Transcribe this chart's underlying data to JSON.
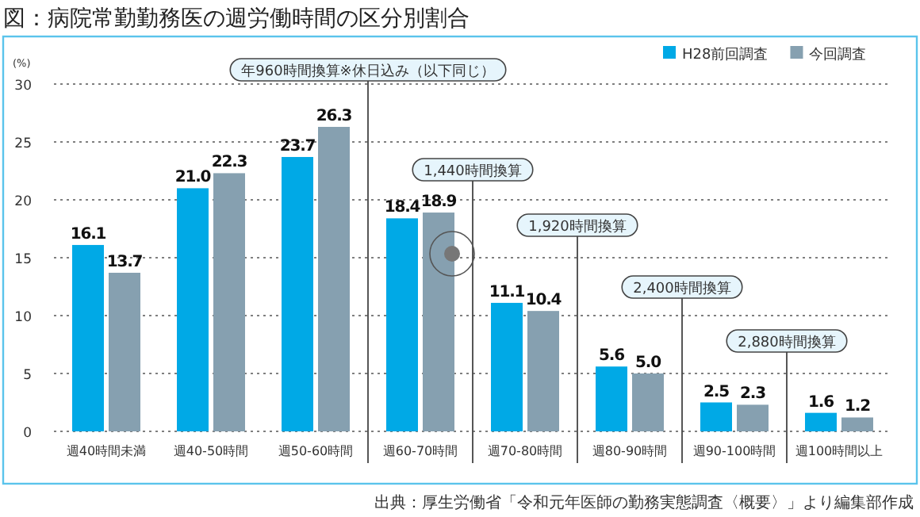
{
  "chart_data": {
    "type": "bar",
    "title": "図：病院常勤勤務医の週労働時間の区分別割合",
    "ylabel": "(%)",
    "categories": [
      "週40時間未満",
      "週40-50時間",
      "週50-60時間",
      "週60-70時間",
      "週70-80時間",
      "週80-90時間",
      "週90-100時間",
      "週100時間以上"
    ],
    "series": [
      {
        "name": "H28前回調査",
        "color": "#00a9e6",
        "values": [
          16.1,
          21.0,
          23.7,
          18.4,
          11.1,
          5.6,
          2.5,
          1.6
        ],
        "value_labels": [
          "16.1",
          "21.0",
          "23.7",
          "18.4",
          "11.1",
          "5.6",
          "2.5",
          "1.6"
        ]
      },
      {
        "name": "今回調査",
        "color": "#86a0b0",
        "values": [
          13.7,
          22.3,
          26.3,
          18.9,
          10.4,
          5.0,
          2.3,
          1.2
        ],
        "value_labels": [
          "13.7",
          "22.3",
          "26.3",
          "18.9",
          "10.4",
          "5.0",
          "2.3",
          "1.2"
        ]
      }
    ],
    "ylim": [
      0,
      30
    ],
    "yticks": [
      0,
      5,
      10,
      15,
      20,
      25,
      30
    ],
    "grid": "y",
    "legend": "top right",
    "annotations": [
      "年960時間換算※休日込み（以下同じ）",
      "1,440時間換算",
      "1,920時間換算",
      "2,400時間換算",
      "2,880時間換算",
      "出典：厚生労働省「令和元年医師の勤務実態調査〈概要〉」より編集部作成"
    ]
  }
}
